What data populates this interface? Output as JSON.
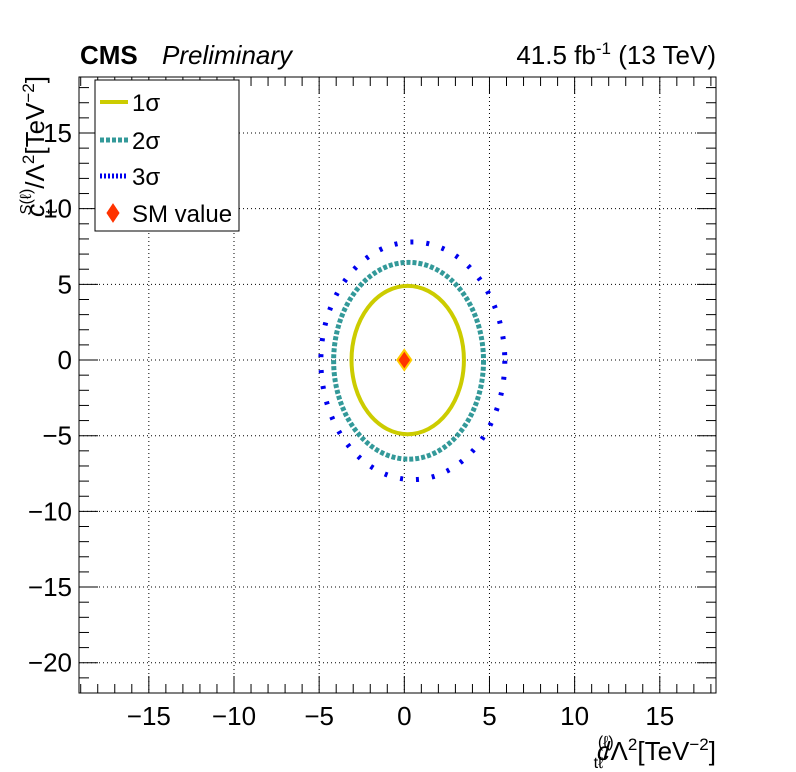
{
  "header": {
    "experiment": "CMS",
    "status": "Preliminary",
    "lumi_prefix": "41.5 fb",
    "lumi_exp": "-1",
    "lumi_suffix": " (13 TeV)"
  },
  "chart_data": {
    "type": "scatter",
    "xlabel": "c_tℓ^(ℓ)/Λ^2[TeV^-2]",
    "ylabel": "c_t^S(ℓ)/Λ^2[TeV^-2]",
    "xlim": [
      -19.1,
      18.3
    ],
    "ylim": [
      -22.0,
      18.7
    ],
    "x_ticks": [
      -15,
      -10,
      -5,
      0,
      5,
      10,
      15
    ],
    "x_tick_labels": [
      "−15",
      "−10",
      "−5",
      "0",
      "5",
      "10",
      "15"
    ],
    "y_ticks": [
      -20,
      -15,
      -10,
      -5,
      0,
      5,
      10,
      15
    ],
    "y_tick_labels": [
      "−20",
      "−15",
      "−10",
      "−5",
      "0",
      "5",
      "10",
      "15"
    ],
    "grid": true,
    "legend_position": "top-left",
    "series": [
      {
        "name": "1σ",
        "style": "solid",
        "color": "#cccc00",
        "center": [
          0.2,
          0.0
        ],
        "radii": [
          3.3,
          4.9
        ]
      },
      {
        "name": "2σ",
        "style": "dashed",
        "color": "#339999",
        "center": [
          0.25,
          -0.05
        ],
        "radii": [
          4.4,
          6.5
        ]
      },
      {
        "name": "3σ",
        "style": "dotted",
        "color": "#0000ee",
        "center": [
          0.5,
          -0.05
        ],
        "radii": [
          5.4,
          7.85
        ]
      }
    ],
    "sm_point": {
      "name": "SM value",
      "x": 0,
      "y": 0,
      "color": "#ff3300",
      "edge": "#ffcc00"
    }
  }
}
